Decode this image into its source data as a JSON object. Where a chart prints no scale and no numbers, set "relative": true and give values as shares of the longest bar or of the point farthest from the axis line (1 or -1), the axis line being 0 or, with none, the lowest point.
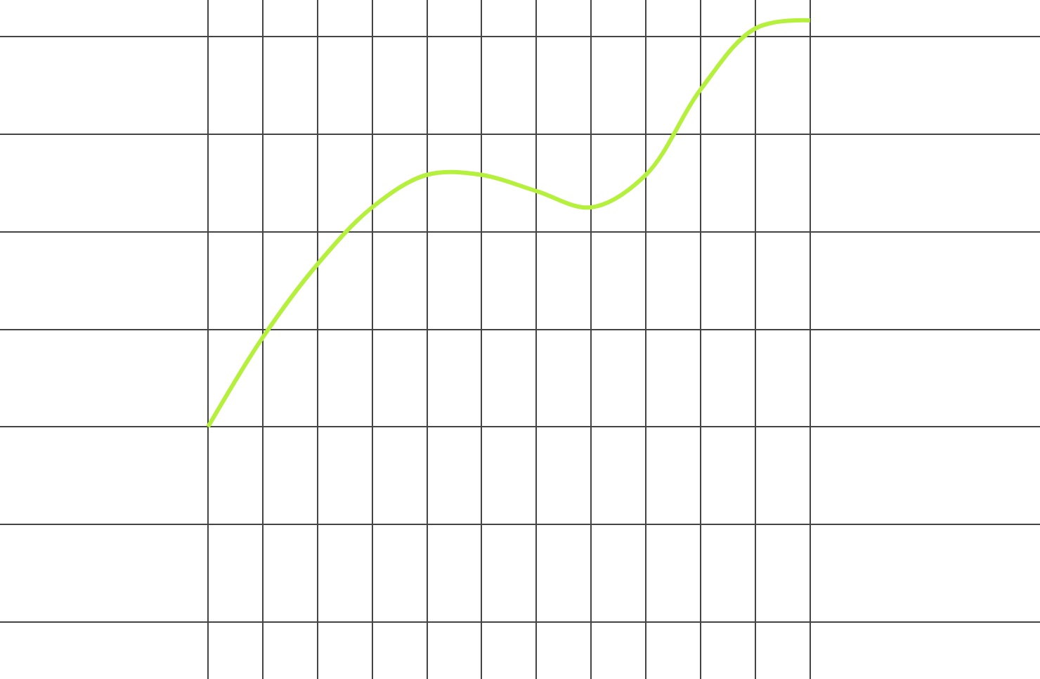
{
  "chart_data": {
    "type": "line",
    "relative": true,
    "grid": true,
    "marker": "none",
    "line_style": "solid",
    "tick_labels": false,
    "categories": [
      null,
      null,
      null,
      null,
      null,
      null,
      null,
      null,
      null,
      null,
      null,
      null
    ],
    "series": [
      {
        "color": "#b5f03c",
        "values": [
          0,
          0.22,
          0.4,
          0.54,
          0.62,
          0.62,
          0.58,
          0.54,
          0.62,
          0.83,
          0.98,
          1
        ]
      }
    ]
  }
}
